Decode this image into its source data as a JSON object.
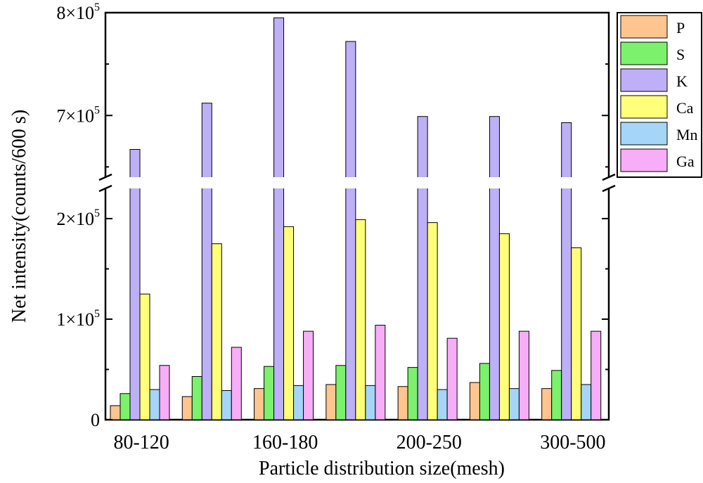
{
  "chart_data": {
    "type": "bar",
    "title": "",
    "xlabel": "Particle distribution size(mesh)",
    "ylabel": "Net intensity(counts/600 s)",
    "categories": [
      "80-120",
      "",
      "160-180",
      "",
      "200-250",
      "",
      "300-500"
    ],
    "category_tick_labels": [
      "80-120",
      "160-180",
      "200-250",
      "300-500"
    ],
    "y_axis_break": {
      "lower_range": [
        0,
        230000
      ],
      "upper_range": [
        640000,
        800000
      ]
    },
    "y_ticks": [
      {
        "value": 0,
        "mantissa": "0",
        "exponent": ""
      },
      {
        "value": 100000,
        "mantissa": "1×10",
        "exponent": "5"
      },
      {
        "value": 200000,
        "mantissa": "2×10",
        "exponent": "5"
      },
      {
        "value": 700000,
        "mantissa": "7×10",
        "exponent": "5"
      },
      {
        "value": 800000,
        "mantissa": "8×10",
        "exponent": "5"
      }
    ],
    "legend_position": "top-right",
    "series": [
      {
        "name": "P",
        "color": "#FFC58F",
        "values": [
          14000,
          23000,
          31000,
          35000,
          33000,
          37000,
          31000
        ]
      },
      {
        "name": "S",
        "color": "#7CF16C",
        "values": [
          26000,
          43000,
          53000,
          54000,
          52000,
          56000,
          49000
        ]
      },
      {
        "name": "K",
        "color": "#BDB0F7",
        "values": [
          667000,
          712000,
          795000,
          772000,
          699000,
          699000,
          693000
        ]
      },
      {
        "name": "Ca",
        "color": "#FFFF7A",
        "values": [
          125000,
          175000,
          192000,
          199000,
          196000,
          185000,
          171000
        ]
      },
      {
        "name": "Mn",
        "color": "#A5D5F7",
        "values": [
          30000,
          29000,
          34000,
          34000,
          30000,
          31000,
          35000
        ]
      },
      {
        "name": "Ga",
        "color": "#F7ADF7",
        "values": [
          54000,
          72000,
          88000,
          94000,
          81000,
          88000,
          88000
        ]
      }
    ]
  }
}
